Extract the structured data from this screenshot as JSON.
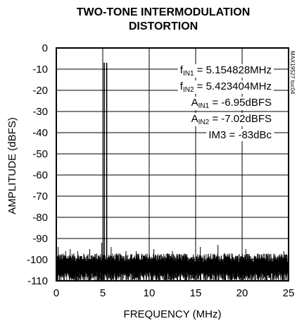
{
  "chart_data": {
    "type": "line",
    "title_lines": [
      "TWO-TONE INTERMODULATION",
      "DISTORTION"
    ],
    "xlabel": "FREQUENCY (MHz)",
    "ylabel": "AMPLITUDE (dBFS)",
    "xlim": [
      0,
      25
    ],
    "ylim": [
      -110,
      0
    ],
    "x_ticks": [
      "0",
      "5",
      "10",
      "15",
      "20",
      "25"
    ],
    "x_tick_values": [
      0,
      5,
      10,
      15,
      20,
      25
    ],
    "y_ticks": [
      "0",
      "-10",
      "-20",
      "-30",
      "-40",
      "-50",
      "-60",
      "-70",
      "-80",
      "-90",
      "-100",
      "-110"
    ],
    "y_tick_values": [
      0,
      -10,
      -20,
      -30,
      -40,
      -50,
      -60,
      -70,
      -80,
      -90,
      -100,
      -110
    ],
    "grid": true,
    "series": [
      {
        "tones": [
          {
            "x": 5.154828,
            "y": -6.95
          },
          {
            "x": 5.423404,
            "y": -7.02
          }
        ],
        "noise_floor": -102,
        "spurs": [
          {
            "x": 0.2,
            "y": -94
          },
          {
            "x": 1.0,
            "y": -96
          },
          {
            "x": 1.5,
            "y": -95
          },
          {
            "x": 2.3,
            "y": -96
          },
          {
            "x": 3.6,
            "y": -95
          },
          {
            "x": 4.9,
            "y": -92
          },
          {
            "x": 5.9,
            "y": -94
          },
          {
            "x": 7.5,
            "y": -96
          },
          {
            "x": 8.6,
            "y": -96
          },
          {
            "x": 10.5,
            "y": -95
          },
          {
            "x": 12.5,
            "y": -96
          },
          {
            "x": 15.5,
            "y": -94
          },
          {
            "x": 17.4,
            "y": -93
          },
          {
            "x": 20.4,
            "y": -95
          },
          {
            "x": 24.5,
            "y": -96
          }
        ]
      }
    ],
    "annotations": [
      {
        "main": "f",
        "sub": "IN1",
        "rest": " = 5.154828MHz"
      },
      {
        "main": "f",
        "sub": "IN2",
        "rest": " = 5.423404MHz"
      },
      {
        "main": "A",
        "sub": "IN1",
        "rest": " = -6.95dBFS"
      },
      {
        "main": "A",
        "sub": "IN2",
        "rest": " = -7.02dBFS"
      },
      {
        "main": "IM3 = -83dBc",
        "sub": "",
        "rest": ""
      }
    ],
    "figure_code": "MAX19527 toc04"
  }
}
